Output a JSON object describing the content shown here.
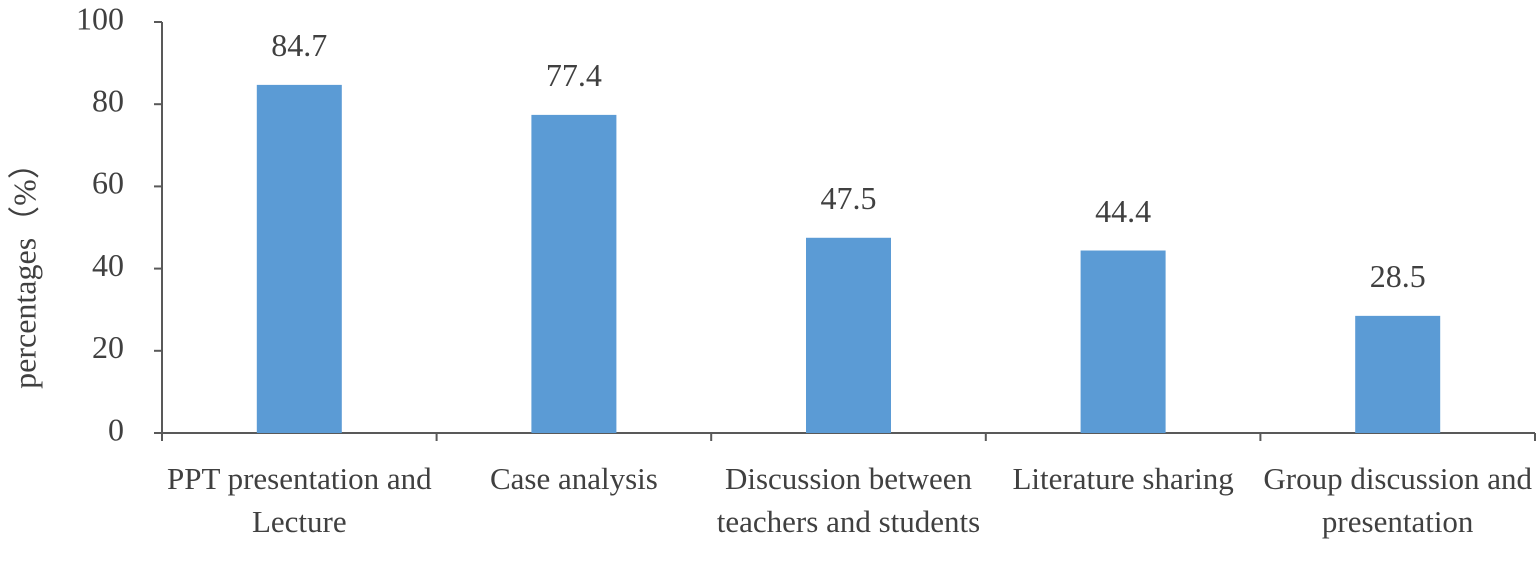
{
  "chart_data": {
    "type": "bar",
    "y_label": "percentages（%）",
    "categories": [
      "PPT presentation and Lecture",
      "Case analysis",
      "Discussion between teachers and students",
      "Literature sharing",
      "Group discussion and presentation"
    ],
    "values": [
      84.7,
      77.4,
      47.5,
      44.4,
      28.5
    ],
    "color": "#5b9bd5",
    "ylim": [
      0,
      100
    ],
    "yticks": [
      0,
      20,
      40,
      60,
      80,
      100
    ],
    "grid": false
  }
}
